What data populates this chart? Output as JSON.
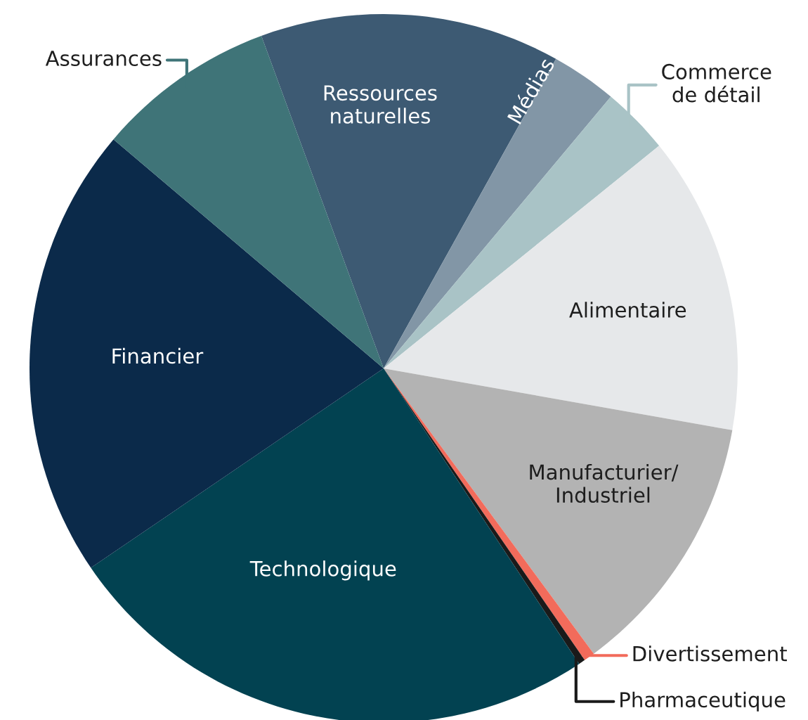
{
  "chart_data": {
    "type": "pie",
    "categories": [
      "Ressources\nnaturelles",
      "Médias",
      "Commerce\nde détail",
      "Alimentaire",
      "Manufacturier/\nIndustriel",
      "Divertissement",
      "Pharmaceutique",
      "Technologique",
      "Financier",
      "Assurances"
    ],
    "values": [
      13.7,
      3.0,
      3.1,
      13.6,
      12.1,
      0.5,
      0.3,
      24.8,
      20.7,
      8.2
    ],
    "colors": [
      "#3d5a73",
      "#8296a6",
      "#a9c3c6",
      "#e6e8ea",
      "#b3b3b3",
      "#f26b5b",
      "#1a1a1a",
      "#024251",
      "#0b2a4a",
      "#3f7478"
    ]
  }
}
